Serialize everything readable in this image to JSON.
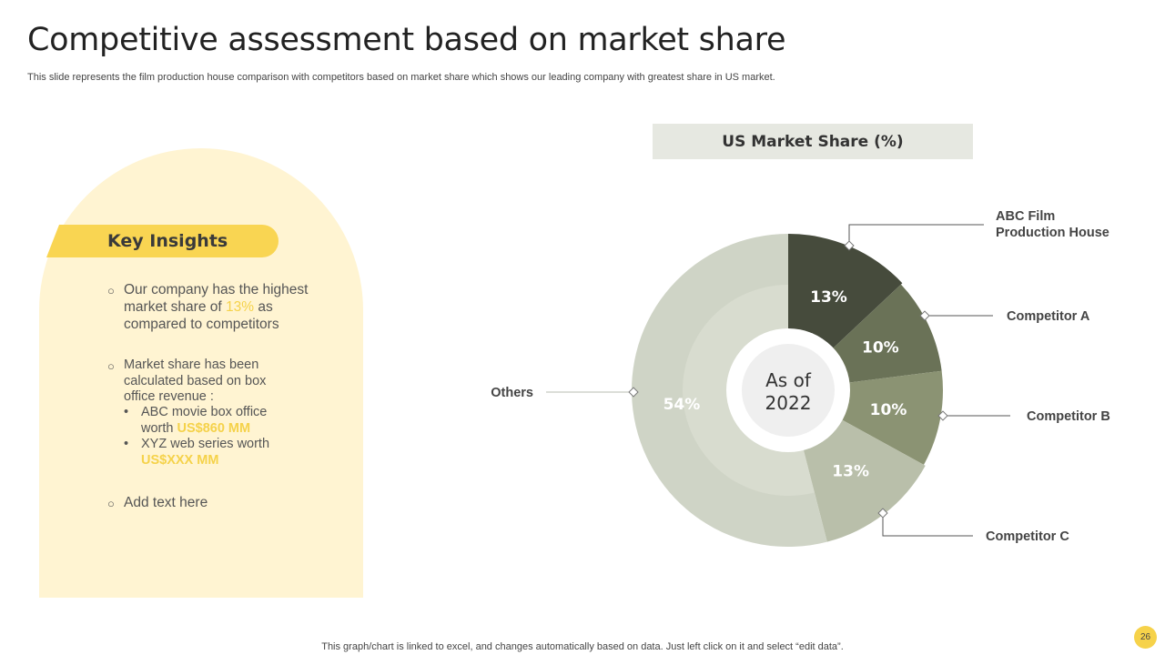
{
  "page": {
    "title": "Competitive assessment based on market share",
    "subtitle": "This slide represents the film production house comparison with competitors based on market share which shows our leading company with greatest share in US market.",
    "footer": "This graph/chart is linked to excel,  and changes automatically based on data. Just left click on it and select “edit data”.",
    "page_number": "26"
  },
  "insights": {
    "heading": "Key Insights",
    "bullet1": {
      "line1": "Our company has the highest",
      "line2_pre": "market share of ",
      "line2_highlight": "13%",
      "line2_post": " as",
      "line3": "compared to competitors"
    },
    "bullet2": {
      "line1": "Market  share has been",
      "line2": "calculated based on box",
      "line3": "office revenue :",
      "sub1_line1": "ABC movie box office",
      "sub1_pre": "worth ",
      "sub1_highlight": "US$860 MM",
      "sub2_line1": "XYZ  web series worth",
      "sub2_highlight": "US$XXX MM"
    },
    "bullet3": "Add text here"
  },
  "chart_data": {
    "type": "pie",
    "title": "US Market Share (%)",
    "center_label_line1": "As of",
    "center_label_line2": "2022",
    "categories": [
      "ABC Film Production House",
      "Competitor A",
      "Competitor B",
      "Competitor C",
      "Others"
    ],
    "values": [
      13,
      10,
      10,
      13,
      54
    ],
    "data_labels": [
      "13%",
      "10%",
      "10%",
      "13%",
      "54%"
    ],
    "colors": [
      "#464b3c",
      "#6a7257",
      "#8b9373",
      "#b9bfaa",
      "#cfd4c6"
    ]
  },
  "colors": {
    "accent_yellow": "#f9d552",
    "panel_cream": "#fff4d2",
    "header_gray": "#e6e8e1"
  }
}
